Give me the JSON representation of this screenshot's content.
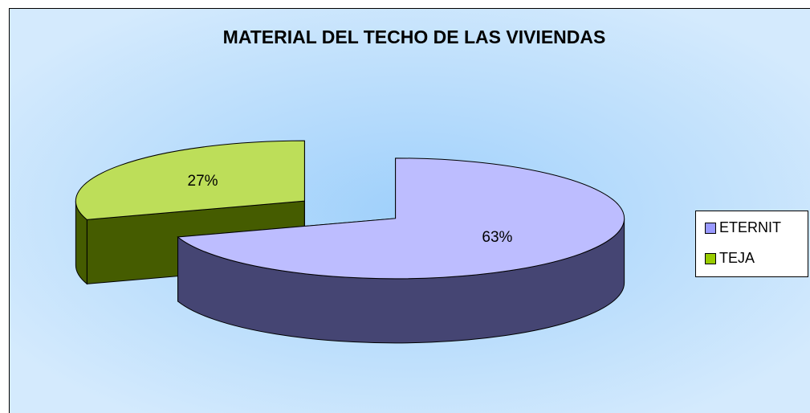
{
  "chart_data": {
    "type": "pie",
    "title": "MATERIAL DEL TECHO DE LAS VIVIENDAS",
    "categories": [
      "ETERNIT",
      "TEJA"
    ],
    "values": [
      63,
      27
    ],
    "value_labels": [
      "63%",
      "27%"
    ],
    "colors": [
      "#9999ff",
      "#99cc00"
    ],
    "legend": "right"
  }
}
